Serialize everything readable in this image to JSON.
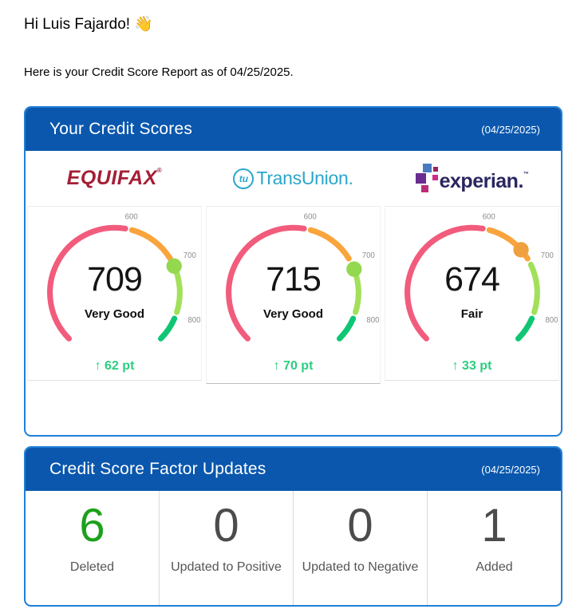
{
  "page": {
    "greeting": "Hi Luis Fajardo!",
    "greeting_emoji": "👋",
    "intro": "Here is your Credit Score Report as of 04/25/2025."
  },
  "scores_card": {
    "title": "Your Credit Scores",
    "date": "(04/25/2025)",
    "change_arrow": "↑",
    "change_color": "#2bce80",
    "gauge": {
      "min": 300,
      "max": 850,
      "start_angle": -135,
      "end_angle": 135,
      "gap_deg": 3,
      "ticks": [
        600,
        700,
        800
      ],
      "segments": [
        {
          "from": 300,
          "to": 600,
          "color": "#f25c7c",
          "label": "poor-fair"
        },
        {
          "from": 600,
          "to": 700,
          "color": "#f9a43c",
          "label": "fair"
        },
        {
          "from": 700,
          "to": 800,
          "color": "#a3e05a",
          "label": "very-good"
        },
        {
          "from": 800,
          "to": 850,
          "color": "#0fc674",
          "label": "excellent"
        }
      ]
    },
    "bureaus": [
      {
        "name": "Equifax",
        "score": 709,
        "rating": "Very Good",
        "change": "62 pt",
        "marker_color": "#93d84f"
      },
      {
        "name": "TransUnion",
        "score": 715,
        "rating": "Very Good",
        "change": "70 pt",
        "marker_color": "#93d84f"
      },
      {
        "name": "Experian",
        "score": 674,
        "rating": "Fair",
        "change": "33 pt",
        "marker_color": "#efa03f"
      }
    ],
    "logos": {
      "equifax": {
        "text": "EQUIFAX",
        "mark": "®",
        "color": "#a51e36"
      },
      "transunion": {
        "circle_text": "tu",
        "text": "TransUnion",
        "dot": ".",
        "color": "#2ba7cb"
      },
      "experian": {
        "text": "experian.",
        "mark": "™",
        "color": "#2a2660",
        "squares": {
          "blue": "#4a7bc1",
          "tiny": "#9c2265",
          "purple": "#6a2c8f",
          "magenta": "#d12b8a",
          "bottom": "#b82e76"
        }
      }
    }
  },
  "factors_card": {
    "title": "Credit Score Factor Updates",
    "date": "(04/25/2025)",
    "stats": [
      {
        "value": "6",
        "label": "Deleted",
        "color": "#1ca11c"
      },
      {
        "value": "0",
        "label": "Updated to Positive",
        "color": "#4c4c4c"
      },
      {
        "value": "0",
        "label": "Updated to Negative",
        "color": "#4c4c4c"
      },
      {
        "value": "1",
        "label": "Added",
        "color": "#4c4c4c"
      }
    ]
  },
  "chart_data": [
    {
      "type": "gauge",
      "title": "Equifax credit score",
      "value": 709,
      "rating": "Very Good",
      "change_pt": 62,
      "range": [
        300,
        850
      ],
      "ticks": [
        600,
        700,
        800
      ],
      "segments": [
        [
          300,
          600
        ],
        [
          600,
          700
        ],
        [
          700,
          800
        ],
        [
          800,
          850
        ]
      ]
    },
    {
      "type": "gauge",
      "title": "TransUnion credit score",
      "value": 715,
      "rating": "Very Good",
      "change_pt": 70,
      "range": [
        300,
        850
      ],
      "ticks": [
        600,
        700,
        800
      ],
      "segments": [
        [
          300,
          600
        ],
        [
          600,
          700
        ],
        [
          700,
          800
        ],
        [
          800,
          850
        ]
      ]
    },
    {
      "type": "gauge",
      "title": "Experian credit score",
      "value": 674,
      "rating": "Fair",
      "change_pt": 33,
      "range": [
        300,
        850
      ],
      "ticks": [
        600,
        700,
        800
      ],
      "segments": [
        [
          300,
          600
        ],
        [
          600,
          700
        ],
        [
          700,
          800
        ],
        [
          800,
          850
        ]
      ]
    },
    {
      "type": "table",
      "title": "Credit Score Factor Updates",
      "categories": [
        "Deleted",
        "Updated to Positive",
        "Updated to Negative",
        "Added"
      ],
      "values": [
        6,
        0,
        0,
        1
      ]
    }
  ]
}
